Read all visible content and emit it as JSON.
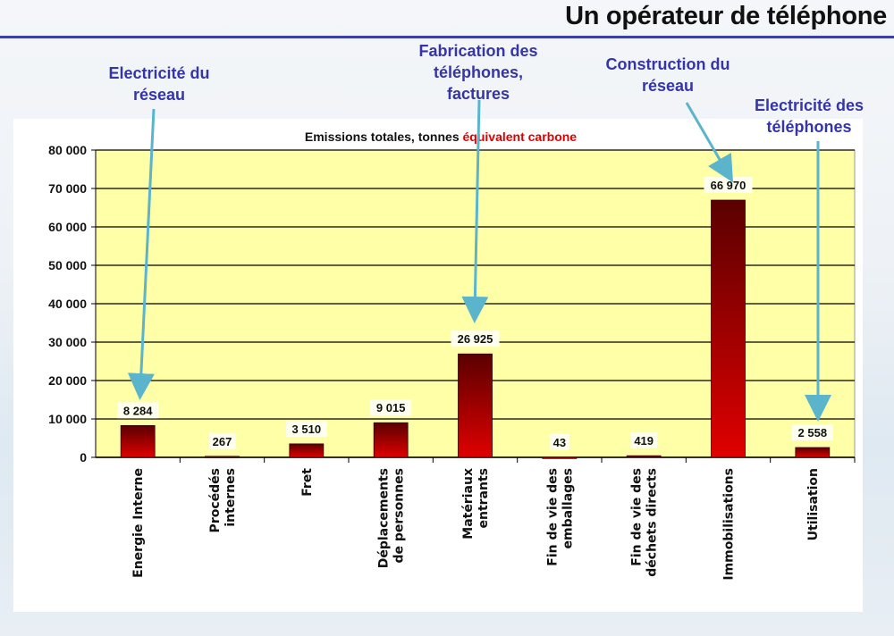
{
  "slide": {
    "title": "Un opérateur de téléphone",
    "annotations": [
      {
        "text": "Electricité du\nréseau",
        "target": "Energie Interne"
      },
      {
        "text": "Fabrication des\ntéléphones,\nfactures",
        "target": "Matériaux entrants"
      },
      {
        "text": "Construction du\nréseau",
        "target": "Immobilisations"
      },
      {
        "text": "Electricité des\ntéléphones",
        "target": "Utilisation"
      }
    ]
  },
  "colors": {
    "plot_bg": "#ffffa8",
    "bar_top": "#5a0000",
    "bar_bottom": "#e00000",
    "annotation": "#3535a8",
    "arrow": "#5ab4cc",
    "title_red": "#e00000"
  },
  "chart_data": {
    "type": "bar",
    "title_part1": "Emissions totales, tonnes ",
    "title_part2": "équivalent carbone",
    "categories": [
      "Energie Interne",
      "Procédés\ninternes",
      "Fret",
      "Déplacements\nde personnes",
      "Matériaux\nentrants",
      "Fin de vie des\nemballages",
      "Fin de vie des\ndéchets directs",
      "Immobilisations",
      "Utilisation"
    ],
    "values": [
      8284,
      267,
      3510,
      9015,
      26925,
      43,
      419,
      66970,
      2558
    ],
    "value_labels": [
      "8 284",
      "267",
      "3 510",
      "9 015",
      "26 925",
      "43",
      "419",
      "66 970",
      "2 558"
    ],
    "ylim": [
      0,
      80000
    ],
    "yticks": [
      0,
      10000,
      20000,
      30000,
      40000,
      50000,
      60000,
      70000,
      80000
    ],
    "ytick_labels": [
      "0",
      "10 000",
      "20 000",
      "30 000",
      "40 000",
      "50 000",
      "60 000",
      "70 000",
      "80 000"
    ],
    "grid": true,
    "xlabel": "",
    "ylabel": ""
  }
}
